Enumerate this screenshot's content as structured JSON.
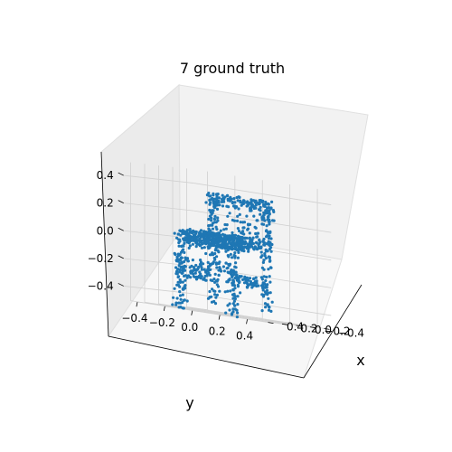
{
  "chart_data": {
    "type": "scatter",
    "projection": "3d",
    "title": "7 ground truth",
    "xlabel": "x",
    "ylabel": "y",
    "zlabel": "",
    "xlim": [
      -0.5,
      0.5
    ],
    "ylim": [
      -0.5,
      0.5
    ],
    "zlim": [
      -0.5,
      0.5
    ],
    "x_ticks": [
      "−0.4",
      "−0.2",
      "0.0",
      "0.2",
      "0.4"
    ],
    "y_ticks": [
      "−0.4",
      "−0.2",
      "0.0",
      "0.2",
      "0.4"
    ],
    "z_ticks": [
      "−0.4",
      "−0.2",
      "0.0",
      "0.2",
      "0.4"
    ],
    "grid": true,
    "colors": {
      "points": "#1f77b4",
      "pane_back": "#f2f2f2",
      "pane_side": "#ebebeb",
      "pane_floor": "#f7f7f7",
      "grid": "#d0d0d0"
    },
    "series": [
      {
        "marker": "point",
        "description_parts": [
          "backrest-top",
          "backrest-slats",
          "seat",
          "front-legs",
          "back-legs",
          "rails"
        ]
      }
    ]
  }
}
